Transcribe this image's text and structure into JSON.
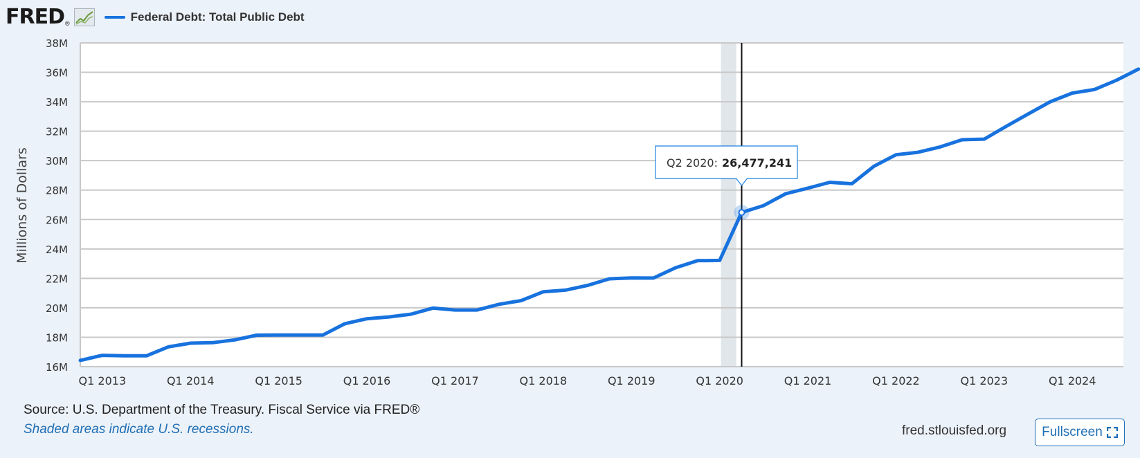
{
  "header": {
    "logo": "FRED",
    "logo_registered": "®",
    "legend_label": "Federal Debt: Total Public Debt"
  },
  "colors": {
    "series": "#1872de",
    "background": "#ecf2f9",
    "plot_bg": "#ffffff",
    "grid": "#c8c8c8",
    "recession": "#e1e6ea",
    "link": "#1f6fb5"
  },
  "chart_data": {
    "type": "line",
    "ylabel": "Millions of Dollars",
    "xlabel": "",
    "ylim": [
      16000000,
      38000000
    ],
    "y_ticks": [
      "16M",
      "18M",
      "20M",
      "22M",
      "24M",
      "26M",
      "28M",
      "30M",
      "32M",
      "34M",
      "36M",
      "38M"
    ],
    "x_ticks": [
      "Q1 2013",
      "Q1 2014",
      "Q1 2015",
      "Q1 2016",
      "Q1 2017",
      "Q1 2018",
      "Q1 2019",
      "Q1 2020",
      "Q1 2021",
      "Q1 2022",
      "Q1 2023",
      "Q1 2024"
    ],
    "grid": true,
    "legend": "top-left",
    "recession": {
      "start": "Q1 2020",
      "end": "Q2 2020"
    },
    "series": [
      {
        "name": "Federal Debt: Total Public Debt",
        "x": [
          "Q4 2012",
          "Q1 2013",
          "Q2 2013",
          "Q3 2013",
          "Q4 2013",
          "Q1 2014",
          "Q2 2014",
          "Q3 2014",
          "Q4 2014",
          "Q1 2015",
          "Q2 2015",
          "Q3 2015",
          "Q4 2015",
          "Q1 2016",
          "Q2 2016",
          "Q3 2016",
          "Q4 2016",
          "Q1 2017",
          "Q2 2017",
          "Q3 2017",
          "Q4 2017",
          "Q1 2018",
          "Q2 2018",
          "Q3 2018",
          "Q4 2018",
          "Q1 2019",
          "Q2 2019",
          "Q3 2019",
          "Q4 2019",
          "Q1 2020",
          "Q2 2020",
          "Q3 2020",
          "Q4 2020",
          "Q1 2021",
          "Q2 2021",
          "Q3 2021",
          "Q4 2021",
          "Q1 2022",
          "Q2 2022",
          "Q3 2022",
          "Q4 2022",
          "Q1 2023",
          "Q2 2023",
          "Q3 2023",
          "Q4 2023",
          "Q1 2024",
          "Q2 2024",
          "Q3 2024",
          "Q4 2024"
        ],
        "values": [
          16430000,
          16770000,
          16740000,
          16740000,
          17350000,
          17600000,
          17630000,
          17820000,
          18140000,
          18150000,
          18150000,
          18150000,
          18920000,
          19260000,
          19380000,
          19570000,
          19980000,
          19850000,
          19850000,
          20240000,
          20490000,
          21090000,
          21200000,
          21520000,
          21970000,
          22030000,
          22020000,
          22720000,
          23200000,
          23220000,
          26477241,
          26950000,
          27750000,
          28130000,
          28530000,
          28430000,
          29620000,
          30400000,
          30570000,
          30930000,
          31420000,
          31460000,
          32330000,
          33170000,
          34000000,
          34590000,
          34830000,
          35460000,
          36220000
        ]
      }
    ]
  },
  "tooltip": {
    "category": "Q2 2020:",
    "value": "26,477,241"
  },
  "footer": {
    "source": "Source: U.S. Department of the Treasury. Fiscal Service via FRED®",
    "note": "Shaded areas indicate U.S. recessions.",
    "site": "fred.stlouisfed.org",
    "fullscreen_label": "Fullscreen",
    "fullscreen_icon": "expand-icon"
  }
}
